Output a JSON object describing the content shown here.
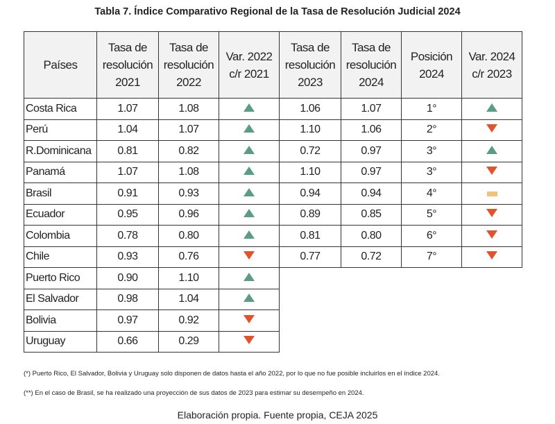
{
  "title": "Tabla 7. Índice Comparativo Regional de la Tasa de Resolución Judicial 2024",
  "headers": [
    "Países",
    "Tasa de resolución 2021",
    "Tasa de resolución 2022",
    "Var. 2022 c/r 2021",
    "Tasa de resolución 2023",
    "Tasa de resolución 2024",
    "Posición 2024",
    "Var. 2024 c/r 2023"
  ],
  "rows": [
    {
      "pais": "Costa Rica",
      "t2021": "1.07",
      "t2022": "1.08",
      "var22": "up",
      "t2023": "1.06",
      "t2024": "1.07",
      "pos": "1°",
      "var24": "up"
    },
    {
      "pais": "Perú",
      "t2021": "1.04",
      "t2022": "1.07",
      "var22": "up",
      "t2023": "1.10",
      "t2024": "1.06",
      "pos": "2°",
      "var24": "down"
    },
    {
      "pais": "R.Dominicana",
      "t2021": "0.81",
      "t2022": "0.82",
      "var22": "up",
      "t2023": "0.72",
      "t2024": "0.97",
      "pos": "3°",
      "var24": "up"
    },
    {
      "pais": "Panamá",
      "t2021": "1.07",
      "t2022": "1.08",
      "var22": "up",
      "t2023": "1.10",
      "t2024": "0.97",
      "pos": "3°",
      "var24": "down"
    },
    {
      "pais": "Brasil",
      "t2021": "0.91",
      "t2022": "0.93",
      "var22": "up",
      "t2023": "0.94",
      "t2024": "0.94",
      "pos": "4°",
      "var24": "equal"
    },
    {
      "pais": "Ecuador",
      "t2021": "0.95",
      "t2022": "0.96",
      "var22": "up",
      "t2023": "0.89",
      "t2024": "0.85",
      "pos": "5°",
      "var24": "down"
    },
    {
      "pais": "Colombia",
      "t2021": "0.78",
      "t2022": "0.80",
      "var22": "up",
      "t2023": "0.81",
      "t2024": "0.80",
      "pos": "6°",
      "var24": "down"
    },
    {
      "pais": "Chile",
      "t2021": "0.93",
      "t2022": "0.76",
      "var22": "down",
      "t2023": "0.77",
      "t2024": "0.72",
      "pos": "7°",
      "var24": "down"
    },
    {
      "pais": "Puerto Rico",
      "t2021": "0.90",
      "t2022": "1.10",
      "var22": "up"
    },
    {
      "pais": "El Salvador",
      "t2021": "0.98",
      "t2022": "1.04",
      "var22": "up"
    },
    {
      "pais": "Bolivia",
      "t2021": "0.97",
      "t2022": "0.92",
      "var22": "down"
    },
    {
      "pais": "Uruguay",
      "t2021": "0.66",
      "t2022": "0.29",
      "var22": "down"
    }
  ],
  "colors": {
    "up": "#5a9e82",
    "down": "#e0532c",
    "equal": "#f0c27a",
    "header_bg": "#f2f2f2"
  },
  "notes": [
    "(*) Puerto Rico, El Salvador, Bolivia y Uruguay solo disponen de datos hasta el año 2022, por lo que no fue posible incluirlos en el índice 2024.",
    "(**) En el caso de Brasil, se ha realizado una proyección de sus datos de 2023 para estimar su desempeño en 2024."
  ],
  "footer": "Elaboración propia. Fuente propia, CEJA 2025"
}
